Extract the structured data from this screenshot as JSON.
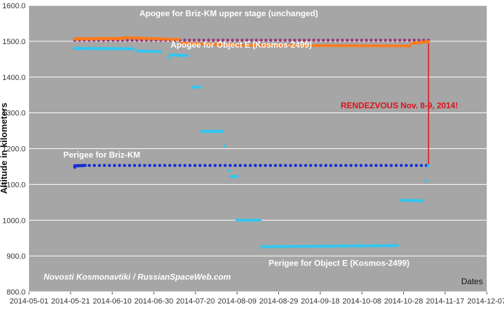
{
  "chart_data": {
    "type": "scatter",
    "ylabel": "Altitude in kilometers",
    "xlabel": "Dates",
    "ylim": [
      800,
      1600
    ],
    "xlim": [
      "2014-05-01",
      "2014-12-07"
    ],
    "yticks": [
      "800.0",
      "900.0",
      "1000.0",
      "1100.0",
      "1200.0",
      "1300.0",
      "1400.0",
      "1500.0",
      "1600.0"
    ],
    "xticks": [
      "2014-05-01",
      "2014-05-21",
      "2014-06-10",
      "2014-06-30",
      "2014-07-20",
      "2014-08-09",
      "2014-08-29",
      "2014-09-18",
      "2014-10-08",
      "2014-10-28",
      "2014-11-17",
      "2014-12-07"
    ],
    "grid": true,
    "colors": {
      "background": "#a6a6a6",
      "apogee_briz": "#9a3a78",
      "apogee_object_e": "#ff7a1a",
      "perigee_briz": "#1a2fd6",
      "perigee_object_e": "#33c6f0",
      "rendezvous_line": "#e0101a"
    },
    "annotations": [
      {
        "text": "Apogee for Briz-KM upper stage (unchanged)",
        "x": "2014-08-05",
        "y": 1570
      },
      {
        "text": "Apogee for Object E (Kosmos-2499)",
        "x": "2014-08-11",
        "y": 1482
      },
      {
        "text": "Perigee for Briz-KM",
        "x": "2014-06-05",
        "y": 1175
      },
      {
        "text": "Perigee for Object E (Kosmos-2499)",
        "x": "2014-09-27",
        "y": 872
      },
      {
        "text": "RENDEZVOUS Nov. 8-9, 2014!",
        "x": "2014-10-26",
        "y": 1313,
        "color": "#e0101a"
      },
      {
        "text": "Novosti Kosmonavtiki / RussianSpaceWeb.com",
        "x": "2014-06-22",
        "y": 834
      }
    ],
    "rendezvous": {
      "date": "2014-11-09",
      "y_from": 1500,
      "y_to": 1155
    },
    "series": [
      {
        "name": "Apogee for Briz-KM upper stage (unchanged)",
        "color": "#9a3a78",
        "segments": [
          {
            "from": "2014-05-23",
            "to": "2014-11-09",
            "y_from": 1503,
            "y_to": 1503,
            "n": 75
          }
        ],
        "points": []
      },
      {
        "name": "Apogee for Object E (Kosmos-2499)",
        "color": "#ff7a1a",
        "segments": [
          {
            "from": "2014-05-23",
            "to": "2014-06-15",
            "y_from": 1507,
            "y_to": 1508,
            "n": 36
          },
          {
            "from": "2014-06-16",
            "to": "2014-07-12",
            "y_from": 1510,
            "y_to": 1505,
            "n": 22
          },
          {
            "from": "2014-07-13",
            "to": "2014-08-08",
            "y_from": 1494,
            "y_to": 1490,
            "n": 30
          },
          {
            "from": "2014-08-09",
            "to": "2014-10-31",
            "y_from": 1489,
            "y_to": 1487,
            "n": 60
          },
          {
            "from": "2014-11-01",
            "to": "2014-11-09",
            "y_from": 1494,
            "y_to": 1499,
            "n": 10
          }
        ],
        "points": []
      },
      {
        "name": "Perigee for Briz-KM",
        "color": "#1a2fd6",
        "segments": [
          {
            "from": "2014-05-23",
            "to": "2014-05-28",
            "y_from": 1152,
            "y_to": 1153,
            "n": 12
          },
          {
            "from": "2014-05-30",
            "to": "2014-11-08",
            "y_from": 1153,
            "y_to": 1153,
            "n": 68
          }
        ],
        "points": [
          {
            "x": "2014-05-23",
            "y": 1148
          }
        ]
      },
      {
        "name": "Perigee for Object E (Kosmos-2499)",
        "color": "#33c6f0",
        "segments": [
          {
            "from": "2014-05-23",
            "to": "2014-06-20",
            "y_from": 1480,
            "y_to": 1479,
            "n": 36
          },
          {
            "from": "2014-06-22",
            "to": "2014-07-03",
            "y_from": 1473,
            "y_to": 1471,
            "n": 10
          },
          {
            "from": "2014-07-08",
            "to": "2014-07-16",
            "y_from": 1462,
            "y_to": 1460,
            "n": 10
          },
          {
            "from": "2014-07-19",
            "to": "2014-07-22",
            "y_from": 1372,
            "y_to": 1372,
            "n": 5
          },
          {
            "from": "2014-07-23",
            "to": "2014-08-02",
            "y_from": 1248,
            "y_to": 1248,
            "n": 12
          },
          {
            "from": "2014-08-06",
            "to": "2014-08-09",
            "y_from": 1122,
            "y_to": 1122,
            "n": 4
          },
          {
            "from": "2014-08-09",
            "to": "2014-08-20",
            "y_from": 1000,
            "y_to": 1000,
            "n": 10
          },
          {
            "from": "2014-08-21",
            "to": "2014-10-25",
            "y_from": 926,
            "y_to": 929,
            "n": 60
          },
          {
            "from": "2014-10-27",
            "to": "2014-11-06",
            "y_from": 1056,
            "y_to": 1054,
            "n": 12
          }
        ],
        "points": [
          {
            "x": "2014-07-07",
            "y": 1454
          },
          {
            "x": "2014-08-03",
            "y": 1207
          },
          {
            "x": "2014-08-05",
            "y": 1138
          },
          {
            "x": "2014-11-08",
            "y": 1110
          },
          {
            "x": "2014-11-09",
            "y": 1152
          }
        ]
      }
    ]
  }
}
